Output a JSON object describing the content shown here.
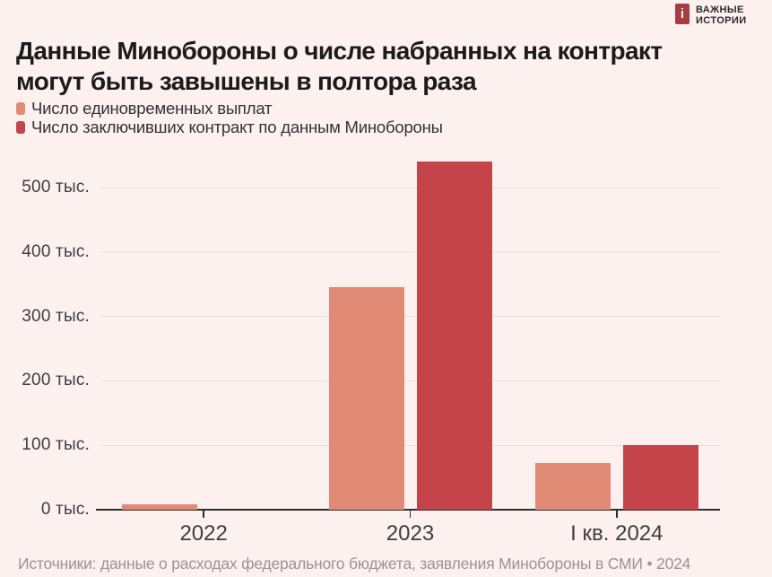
{
  "logo": {
    "letter": "i",
    "line1": "ВАЖНЫЕ",
    "line2": "ИСТОРИИ"
  },
  "header": {
    "title_line1": "Данные Минобороны о числе набранных на контракт",
    "title_line2": "могут быть завышены в полтора раза"
  },
  "legend": {
    "items": [
      {
        "label": "Число единовременных выплат",
        "color": "#e18a76"
      },
      {
        "label": "Число заключивших контракт по данным Минобороны",
        "color": "#c5444a"
      }
    ]
  },
  "chart_data": {
    "type": "bar",
    "title": "Данные Минобороны о числе набранных на контракт могут быть завышены в полтора раза",
    "categories": [
      "2022",
      "2023",
      "I кв. 2024"
    ],
    "series": [
      {
        "name": "Число единовременных выплат",
        "color": "#e18a76",
        "values": [
          8,
          345,
          73
        ]
      },
      {
        "name": "Число заключивших контракт по данным Минобороны",
        "color": "#c5444a",
        "values": [
          null,
          540,
          100
        ]
      }
    ],
    "yticks": [
      0,
      100,
      200,
      300,
      400,
      500
    ],
    "ytick_suffix": " тыс.",
    "ylim": [
      0,
      557
    ],
    "grid": true,
    "legend_position": "top-left",
    "units": "thousands of people"
  },
  "footer": {
    "source": "Источники: данные о расходах федерального бюджета, заявления Минобороны в СМИ • 2024"
  },
  "colors": {
    "background": "#fcf1ef",
    "gridline": "#ecdfdd",
    "axis": "#2e2e2e",
    "title_text": "#1b1b1b",
    "footer_text": "#9d9392",
    "logo_red": "#a63d41",
    "series_light": "#e18a76",
    "series_dark": "#c5444a"
  }
}
